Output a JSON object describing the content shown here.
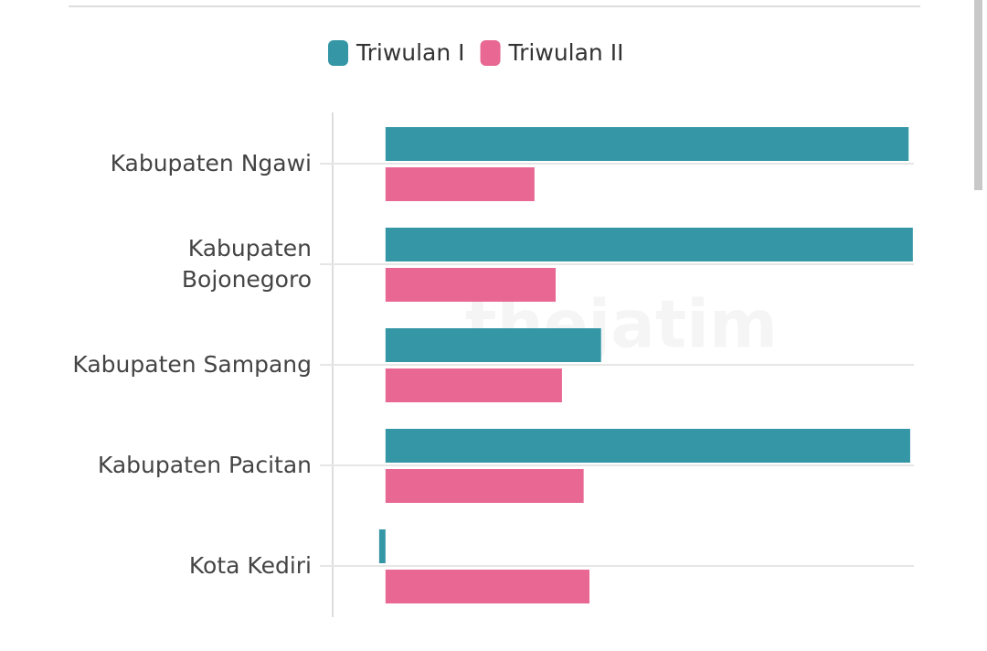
{
  "chart_data": {
    "type": "hbar",
    "watermark": "thejatim",
    "categories": [
      "Kabupaten Ngawi",
      "Kabupaten Bojonegoro",
      "Kabupaten Sampang",
      "Kabupaten Pacitan",
      "Kota Kediri"
    ],
    "series": [
      {
        "name": "Triwulan I",
        "color": "#3597a6",
        "values": [
          99,
          99.8,
          40.8,
          99.3,
          -1.2
        ]
      },
      {
        "name": "Triwulan II",
        "color": "#e86893",
        "values": [
          28.2,
          32.2,
          33.4,
          37.5,
          38.6
        ]
      }
    ],
    "xlim": [
      -10,
      100
    ],
    "grid": true
  }
}
